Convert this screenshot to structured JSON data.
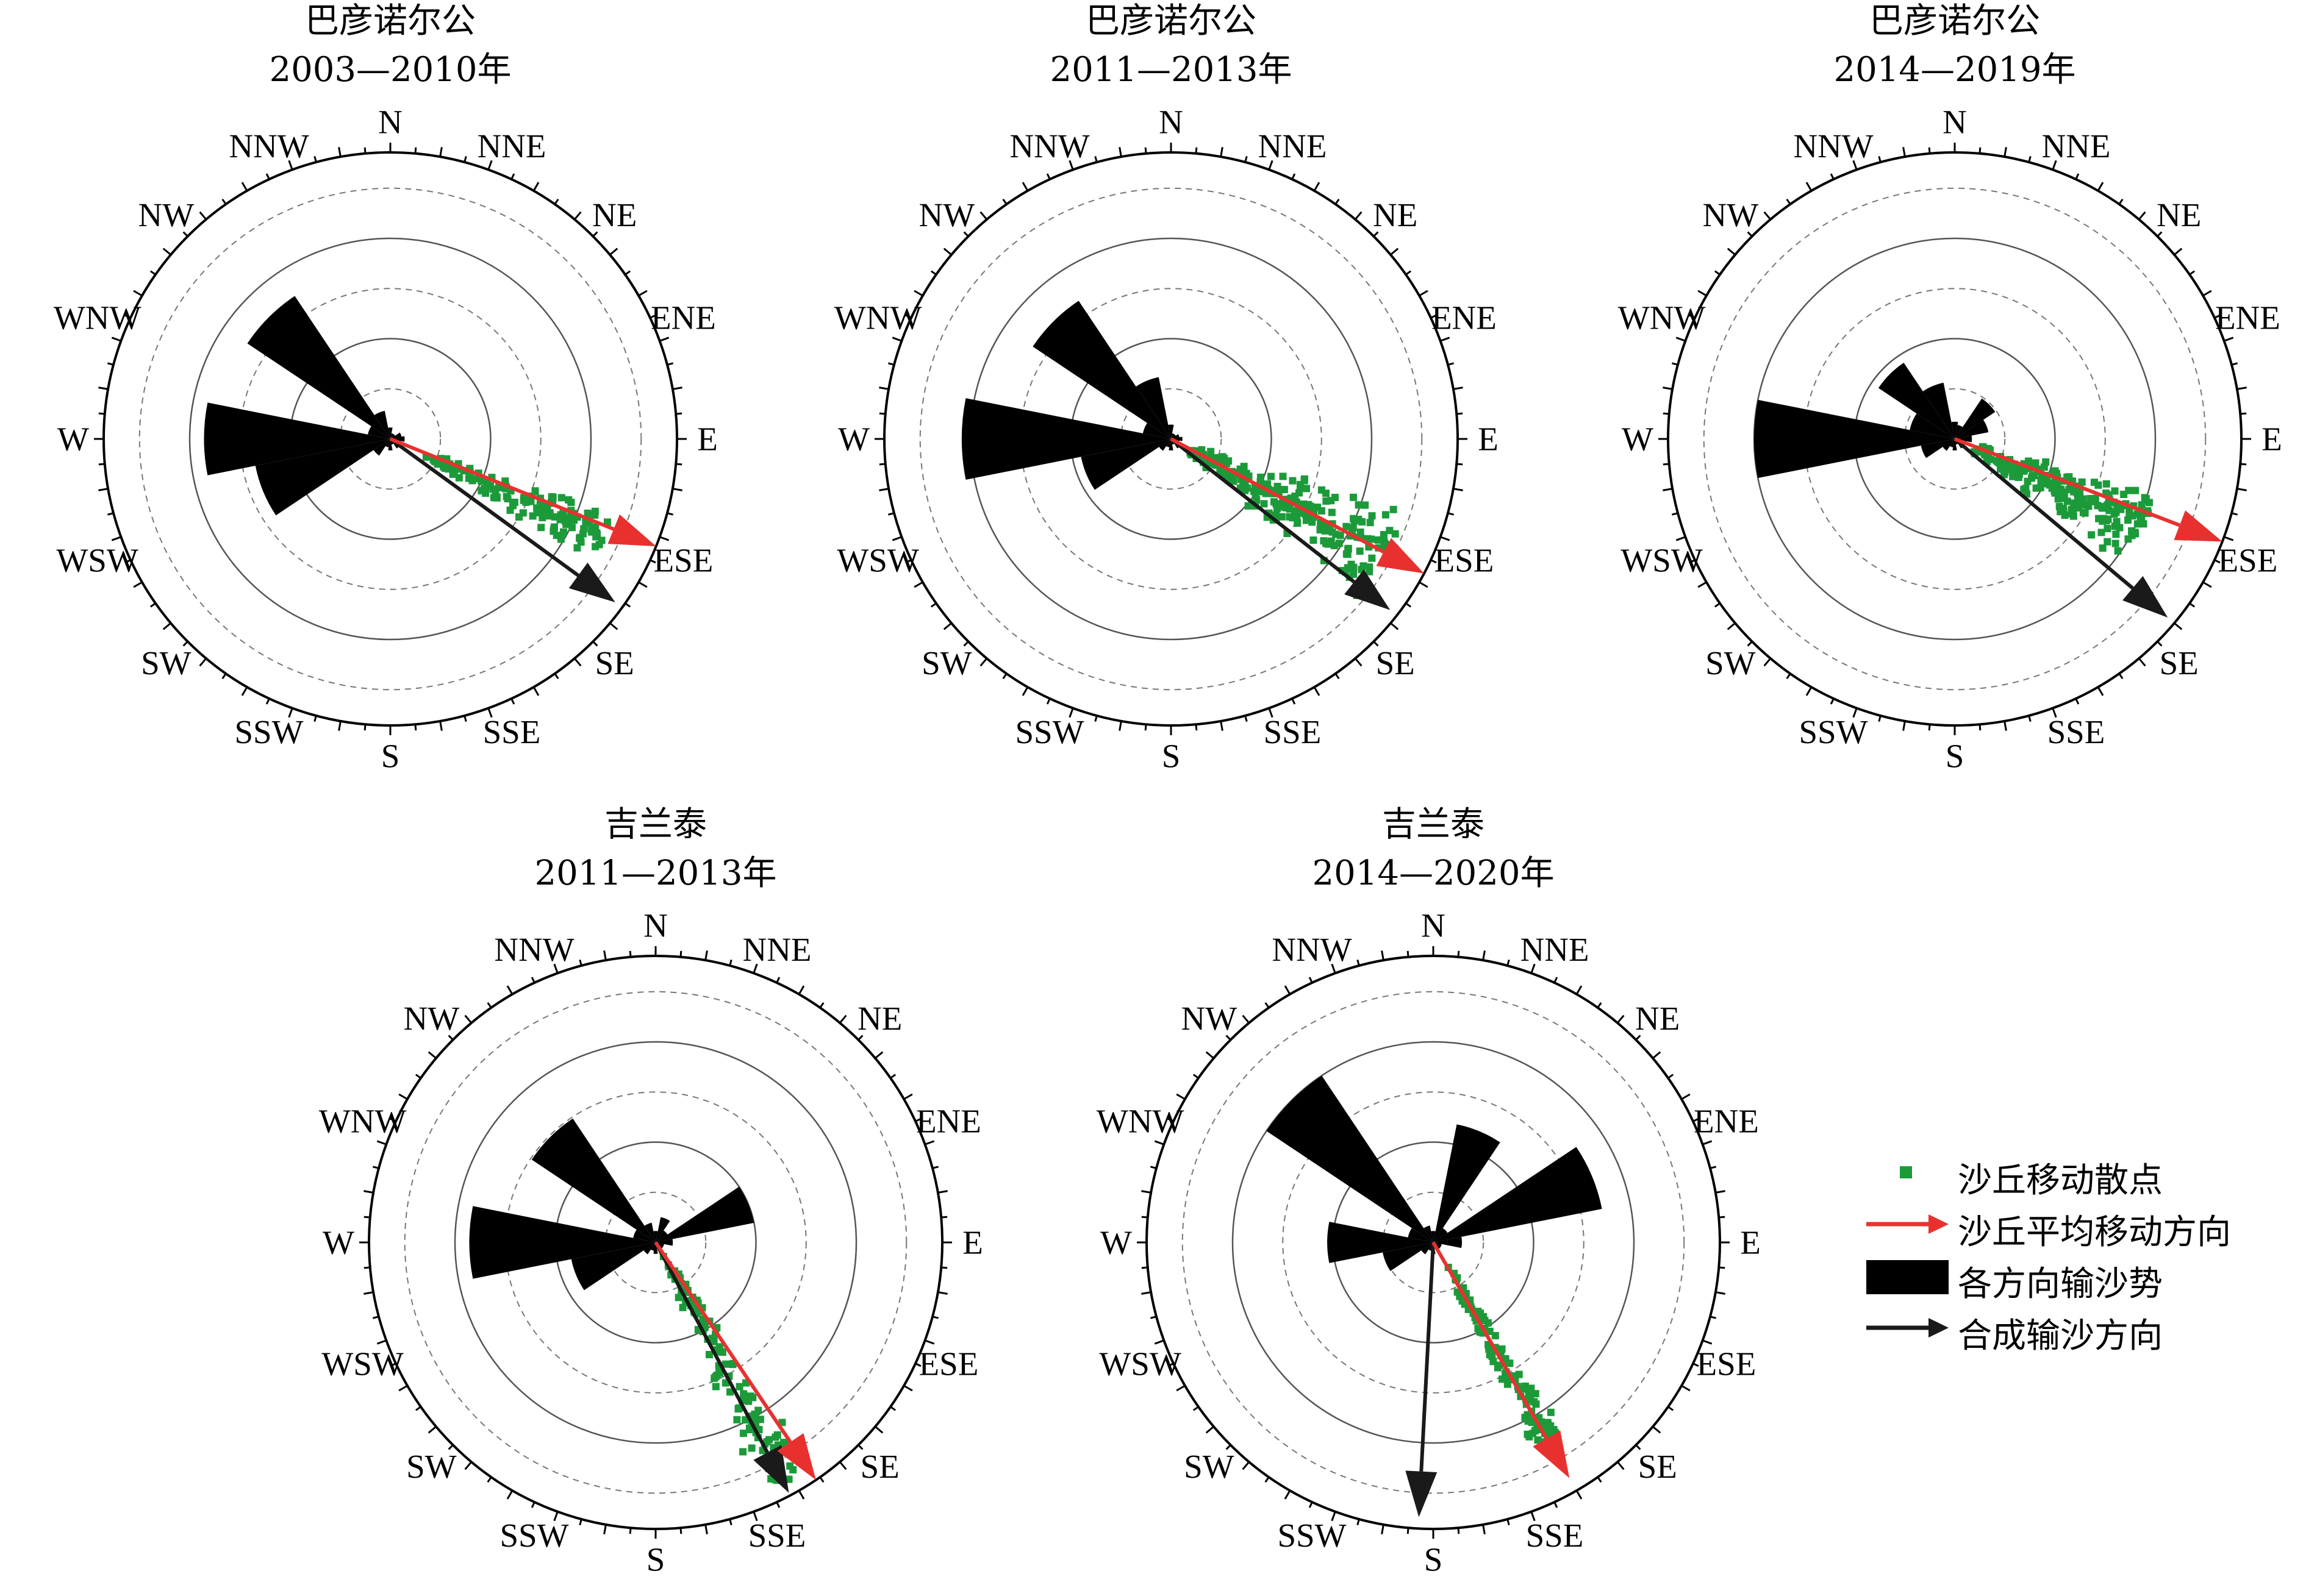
{
  "colors": {
    "potential": "#000000",
    "resultant": "#1a1a1a",
    "movement": "#e8312f",
    "scatter": "#1c9a3a",
    "circle": "#555555"
  },
  "legend": {
    "items": [
      {
        "label": "沙丘移动散点",
        "symbol": "green-square"
      },
      {
        "label": "沙丘平均移动方向",
        "symbol": "red-arrow"
      },
      {
        "label": "各方向输沙势",
        "symbol": "black-bar"
      },
      {
        "label": "合成输沙方向",
        "symbol": "black-arrow"
      }
    ]
  },
  "chart_data": [
    {
      "type": "polar",
      "title": "巴彦诺尔公",
      "subtitle": "2003—2010年",
      "directions": [
        "N",
        "NNE",
        "NE",
        "ENE",
        "E",
        "ESE",
        "SE",
        "SSE",
        "S",
        "SSW",
        "SW",
        "WSW",
        "W",
        "WNW",
        "NW",
        "NNW"
      ],
      "rings": {
        "solid": [
          0.35,
          0.7
        ],
        "dashed": [
          0.175,
          0.525,
          0.875
        ]
      },
      "sand_drift_potential": [
        0.04,
        0.02,
        0.02,
        0.04,
        0.05,
        0.02,
        0.04,
        0.02,
        0.04,
        0.03,
        0.07,
        0.48,
        0.65,
        0.08,
        0.6,
        0.1
      ],
      "resultant_direction": {
        "bearing": 126,
        "length": 0.97
      },
      "mean_migration_direction": {
        "bearing": 112,
        "length": 1.0
      },
      "migration_scatter": {
        "bearing_range": [
          108,
          122
        ],
        "distance_range": [
          0.13,
          0.82
        ],
        "count": 150
      }
    },
    {
      "type": "polar",
      "title": "巴彦诺尔公",
      "subtitle": "2011—2013年",
      "directions": [
        "N",
        "NNE",
        "NE",
        "ENE",
        "E",
        "ESE",
        "SE",
        "SSE",
        "S",
        "SSW",
        "SW",
        "WSW",
        "W",
        "WNW",
        "NW",
        "NNW"
      ],
      "rings": {
        "solid": [
          0.35,
          0.7
        ],
        "dashed": [
          0.175,
          0.525,
          0.875
        ]
      },
      "sand_drift_potential": [
        0.05,
        0.02,
        0.02,
        0.03,
        0.04,
        0.03,
        0.04,
        0.02,
        0.04,
        0.03,
        0.05,
        0.32,
        0.73,
        0.1,
        0.58,
        0.22
      ],
      "resultant_direction": {
        "bearing": 128,
        "length": 0.97
      },
      "mean_migration_direction": {
        "bearing": 118,
        "length": 1.0
      },
      "migration_scatter": {
        "bearing_range": [
          106,
          132
        ],
        "distance_range": [
          0.07,
          0.85
        ],
        "count": 230
      }
    },
    {
      "type": "polar",
      "title": "巴彦诺尔公",
      "subtitle": "2014—2019年",
      "directions": [
        "N",
        "NNE",
        "NE",
        "ENE",
        "E",
        "ESE",
        "SE",
        "SSE",
        "S",
        "SSW",
        "SW",
        "WSW",
        "W",
        "WNW",
        "NW",
        "NNW"
      ],
      "rings": {
        "solid": [
          0.35,
          0.7
        ],
        "dashed": [
          0.175,
          0.525,
          0.875
        ]
      },
      "sand_drift_potential": [
        0.06,
        0.05,
        0.17,
        0.12,
        0.06,
        0.03,
        0.04,
        0.02,
        0.04,
        0.03,
        0.05,
        0.12,
        0.7,
        0.16,
        0.32,
        0.2
      ],
      "resultant_direction": {
        "bearing": 130,
        "length": 0.97
      },
      "mean_migration_direction": {
        "bearing": 111,
        "length": 1.0
      },
      "migration_scatter": {
        "bearing_range": [
          104,
          128
        ],
        "distance_range": [
          0.08,
          0.73
        ],
        "count": 210
      }
    },
    {
      "type": "polar",
      "title": "吉兰泰",
      "subtitle": "2011—2013年",
      "directions": [
        "N",
        "NNE",
        "NE",
        "ENE",
        "E",
        "ESE",
        "SE",
        "SSE",
        "S",
        "SSW",
        "SW",
        "WSW",
        "W",
        "WNW",
        "NW",
        "NNW"
      ],
      "rings": {
        "solid": [
          0.35,
          0.7
        ],
        "dashed": [
          0.175,
          0.525,
          0.875
        ]
      },
      "sand_drift_potential": [
        0.04,
        0.09,
        0.05,
        0.35,
        0.06,
        0.03,
        0.03,
        0.02,
        0.04,
        0.03,
        0.05,
        0.3,
        0.65,
        0.08,
        0.52,
        0.07
      ],
      "resultant_direction": {
        "bearing": 152,
        "length": 0.99
      },
      "mean_migration_direction": {
        "bearing": 146,
        "length": 1.0
      },
      "migration_scatter": {
        "bearing_range": [
          142,
          158
        ],
        "distance_range": [
          0.05,
          0.95
        ],
        "count": 120
      }
    },
    {
      "type": "polar",
      "title": "吉兰泰",
      "subtitle": "2014—2020年",
      "directions": [
        "N",
        "NNE",
        "NE",
        "ENE",
        "E",
        "ESE",
        "SE",
        "SSE",
        "S",
        "SSW",
        "SW",
        "WSW",
        "W",
        "WNW",
        "NW",
        "NNW"
      ],
      "rings": {
        "solid": [
          0.35,
          0.7
        ],
        "dashed": [
          0.175,
          0.525,
          0.875
        ]
      },
      "sand_drift_potential": [
        0.04,
        0.42,
        0.06,
        0.6,
        0.1,
        0.03,
        0.03,
        0.02,
        0.04,
        0.03,
        0.05,
        0.18,
        0.37,
        0.09,
        0.7,
        0.06
      ],
      "resultant_direction": {
        "bearing": 183,
        "length": 0.96
      },
      "mean_migration_direction": {
        "bearing": 150,
        "length": 0.95
      },
      "migration_scatter": {
        "bearing_range": [
          145,
          155
        ],
        "distance_range": [
          0.1,
          0.8
        ],
        "count": 120
      }
    }
  ]
}
